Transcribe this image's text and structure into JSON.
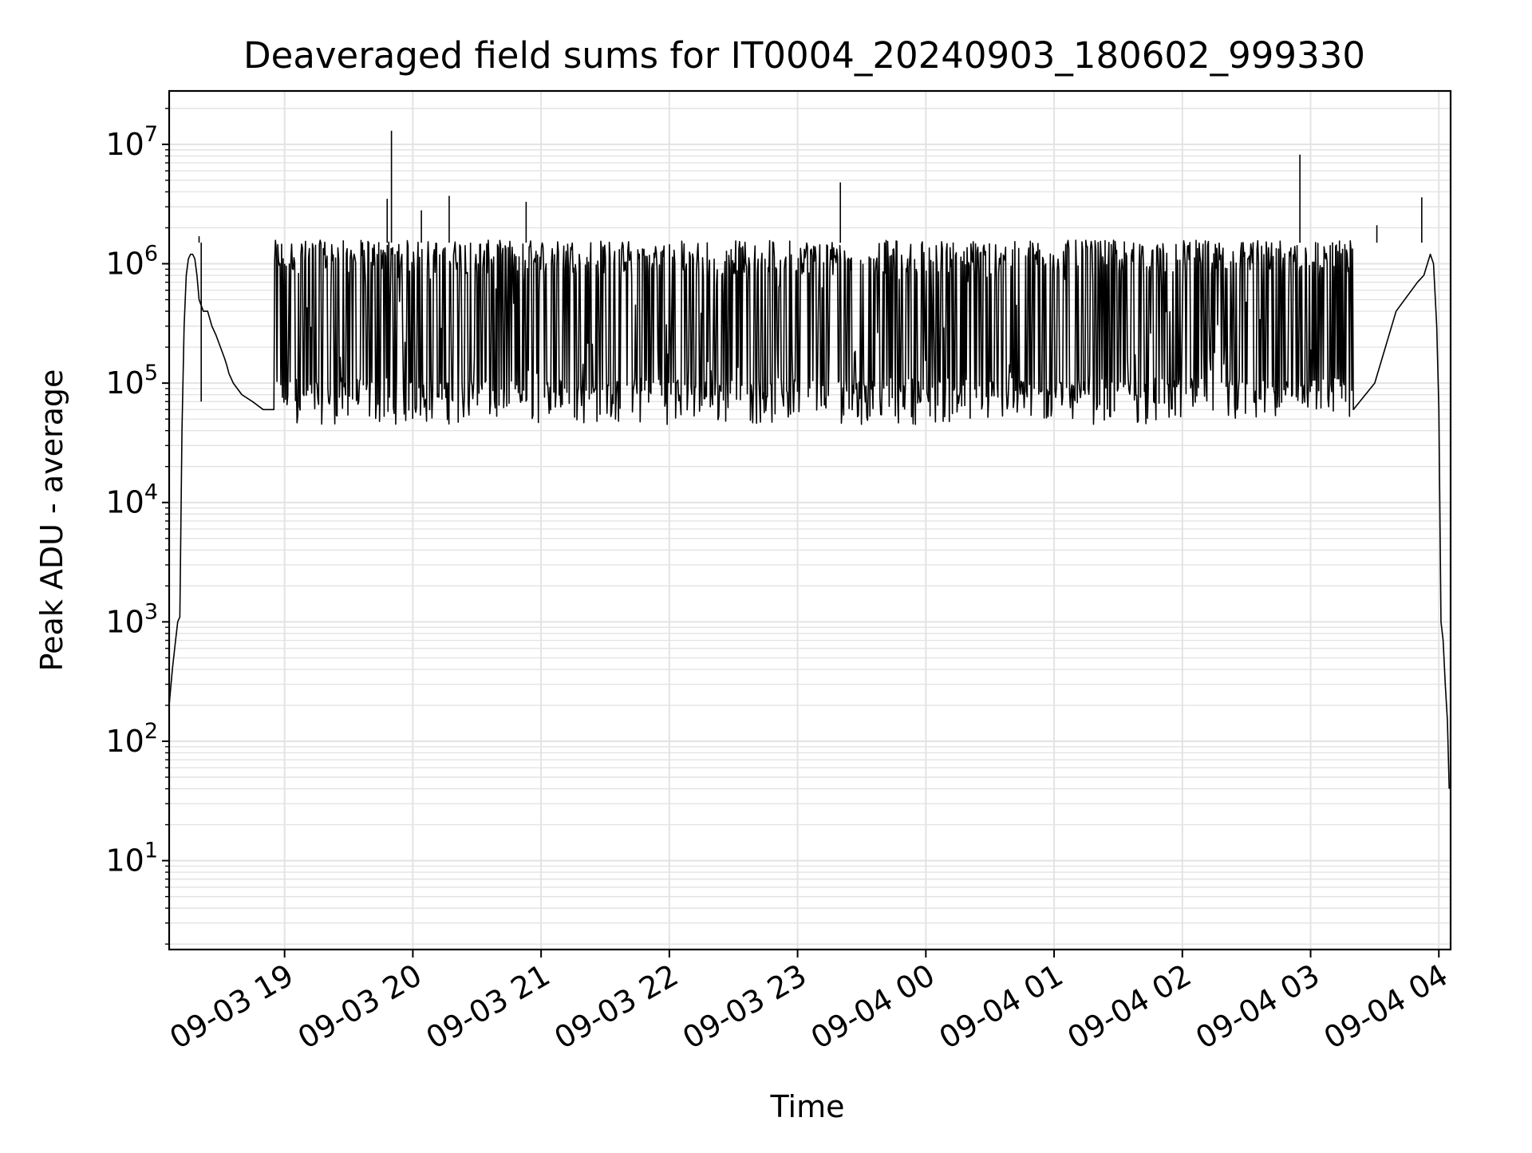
{
  "chart_data": {
    "type": "line",
    "title": "Deaveraged field sums for IT0004_20240903_180602_999330",
    "xlabel": "Time",
    "ylabel": "Peak ADU - average",
    "yscale": "log",
    "ylim": [
      1.8,
      28000000
    ],
    "xlim": [
      "2024-09-03 18:06:00",
      "2024-09-04 04:05:30"
    ],
    "grid": true,
    "line_color": "#000000",
    "grid_color": "#e3e3e3",
    "x_ticks": [
      {
        "value": "2024-09-03 19:00",
        "label": "09-03 19"
      },
      {
        "value": "2024-09-03 20:00",
        "label": "09-03 20"
      },
      {
        "value": "2024-09-03 21:00",
        "label": "09-03 21"
      },
      {
        "value": "2024-09-03 22:00",
        "label": "09-03 22"
      },
      {
        "value": "2024-09-03 23:00",
        "label": "09-03 23"
      },
      {
        "value": "2024-09-04 00:00",
        "label": "09-04 00"
      },
      {
        "value": "2024-09-04 01:00",
        "label": "09-04 01"
      },
      {
        "value": "2024-09-04 02:00",
        "label": "09-04 02"
      },
      {
        "value": "2024-09-04 03:00",
        "label": "09-04 03"
      },
      {
        "value": "2024-09-04 04:00",
        "label": "09-04 04"
      }
    ],
    "y_ticks": [
      {
        "value": 10,
        "base": "10",
        "exp": "1"
      },
      {
        "value": 100,
        "base": "10",
        "exp": "2"
      },
      {
        "value": 1000,
        "base": "10",
        "exp": "3"
      },
      {
        "value": 10000,
        "base": "10",
        "exp": "4"
      },
      {
        "value": 100000,
        "base": "10",
        "exp": "5"
      },
      {
        "value": 1000000,
        "base": "10",
        "exp": "6"
      },
      {
        "value": 10000000,
        "base": "10",
        "exp": "7"
      }
    ],
    "series": [
      {
        "x": [
          "2024-09-03 18:06:00",
          "2024-09-03 18:07:30",
          "2024-09-03 18:09:00",
          "2024-09-03 18:10:00",
          "2024-09-03 18:11:00",
          "2024-09-03 18:12:00",
          "2024-09-03 18:13:00",
          "2024-09-03 18:14:00",
          "2024-09-03 18:15:00",
          "2024-09-03 18:16:00",
          "2024-09-03 18:17:00",
          "2024-09-03 18:18:00",
          "2024-09-03 18:19:00",
          "2024-09-03 18:20:00",
          "2024-09-03 18:22:00",
          "2024-09-03 18:24:00",
          "2024-09-03 18:26:00",
          "2024-09-03 18:28:00",
          "2024-09-03 18:30:00",
          "2024-09-03 18:32:00",
          "2024-09-03 18:33:00",
          "2024-09-03 18:34:00",
          "2024-09-03 18:36:00",
          "2024-09-03 18:40:00",
          "2024-09-03 18:45:00",
          "2024-09-03 18:50:00",
          "2024-09-03 18:55:00",
          "2024-09-04 03:20:00",
          "2024-09-04 03:30:00",
          "2024-09-04 03:40:00",
          "2024-09-04 03:50:00",
          "2024-09-04 03:53:00",
          "2024-09-04 03:56:00",
          "2024-09-04 03:57:30",
          "2024-09-04 03:59:00",
          "2024-09-04 04:00:00",
          "2024-09-04 04:01:00",
          "2024-09-04 04:02:00",
          "2024-09-04 04:03:00",
          "2024-09-04 04:04:00",
          "2024-09-04 04:04:50"
        ],
        "y": [
          200,
          400,
          700,
          1000,
          1100,
          40000,
          300000,
          800000,
          1100000,
          1200000,
          1200000,
          1100000,
          800000,
          500000,
          400000,
          400000,
          300000,
          250000,
          200000,
          160000,
          140000,
          120000,
          100000,
          80000,
          70000,
          60000,
          60000,
          60000,
          100000,
          400000,
          700000,
          800000,
          1200000,
          1000000,
          300000,
          60000,
          1000,
          700,
          300,
          150,
          40
        ],
        "dense_band": {
          "from": "2024-09-03 18:55",
          "to": "2024-09-04 03:20",
          "low": 60000,
          "high": 1500000,
          "minimum": 40000
        }
      }
    ],
    "spikes": [
      {
        "x": "2024-09-03 18:20:00",
        "y": 1700000
      },
      {
        "x": "2024-09-03 18:21:00",
        "y": 70000
      },
      {
        "x": "2024-09-03 19:48:00",
        "y": 3500000
      },
      {
        "x": "2024-09-03 19:50:00",
        "y": 13000000
      },
      {
        "x": "2024-09-03 20:04:00",
        "y": 2800000
      },
      {
        "x": "2024-09-03 20:17:00",
        "y": 3700000
      },
      {
        "x": "2024-09-03 20:53:00",
        "y": 3300000
      },
      {
        "x": "2024-09-03 23:20:00",
        "y": 4800000
      },
      {
        "x": "2024-09-04 02:55:00",
        "y": 8200000
      },
      {
        "x": "2024-09-04 03:31:00",
        "y": 2100000
      },
      {
        "x": "2024-09-04 03:52:00",
        "y": 3600000
      }
    ]
  }
}
